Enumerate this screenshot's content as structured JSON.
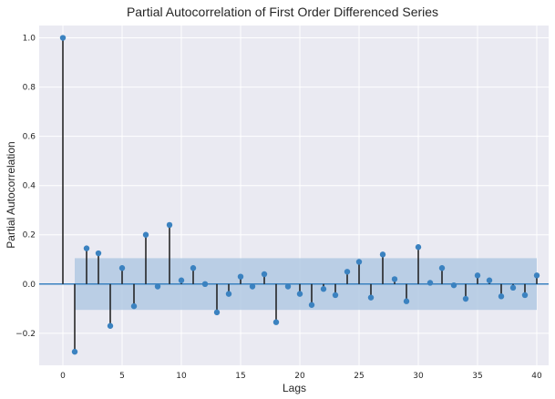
{
  "chart_data": {
    "type": "stem",
    "title": "Partial Autocorrelation of First Order Differenced Series",
    "xlabel": "Lags",
    "ylabel": "Partial Autocorrelation",
    "xlim": [
      -2,
      41
    ],
    "ylim": [
      -0.33,
      1.05
    ],
    "xticks": [
      0,
      5,
      10,
      15,
      20,
      25,
      30,
      35,
      40
    ],
    "xtick_labels": [
      "0",
      "5",
      "10",
      "15",
      "20",
      "25",
      "30",
      "35",
      "40"
    ],
    "yticks": [
      -0.2,
      0.0,
      0.2,
      0.4,
      0.6,
      0.8,
      1.0
    ],
    "ytick_labels": [
      "−0.2",
      "0.0",
      "0.2",
      "0.4",
      "0.6",
      "0.8",
      "1.0"
    ],
    "grid": true,
    "confidence_band": [
      -0.105,
      0.105
    ],
    "lags": [
      0,
      1,
      2,
      3,
      4,
      5,
      6,
      7,
      8,
      9,
      10,
      11,
      12,
      13,
      14,
      15,
      16,
      17,
      18,
      19,
      20,
      21,
      22,
      23,
      24,
      25,
      26,
      27,
      28,
      29,
      30,
      31,
      32,
      33,
      34,
      35,
      36,
      37,
      38,
      39,
      40
    ],
    "values": [
      1.0,
      -0.275,
      0.145,
      0.125,
      -0.17,
      0.065,
      -0.09,
      0.2,
      -0.01,
      0.24,
      0.015,
      0.065,
      0.0,
      -0.115,
      -0.04,
      0.03,
      -0.01,
      0.04,
      -0.155,
      -0.01,
      -0.04,
      -0.085,
      -0.02,
      -0.045,
      0.05,
      0.09,
      -0.055,
      0.12,
      0.02,
      -0.07,
      0.15,
      0.005,
      0.065,
      -0.005,
      -0.06,
      0.035,
      0.015,
      -0.05,
      -0.015,
      -0.045,
      0.035
    ],
    "colors": {
      "background": "#eaeaf2",
      "grid": "#ffffff",
      "marker": "#3b82c0",
      "stem": "#1a1a1a",
      "band": "#a9c4e0",
      "zero_line": "#3b82c0"
    }
  }
}
